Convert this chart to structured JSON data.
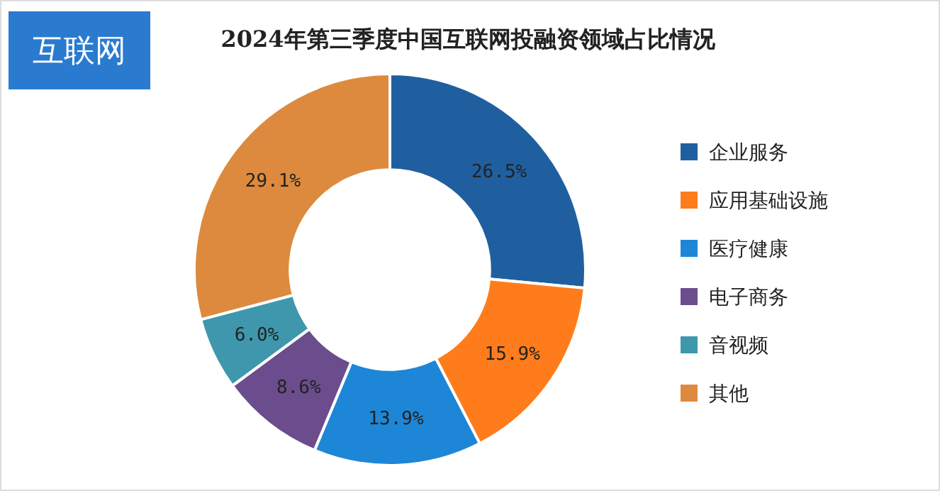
{
  "chart_data": {
    "type": "donut",
    "title": "2024年第三季度中国互联网投融资领域占比情况",
    "categories": [
      "企业服务",
      "应用基础设施",
      "医疗健康",
      "电子商务",
      "音视频",
      "其他"
    ],
    "values": [
      26.5,
      15.9,
      13.9,
      8.6,
      6.0,
      29.1
    ],
    "colors": [
      "#1f5f9f",
      "#ff7c1c",
      "#1e86d6",
      "#6b4c8c",
      "#3f97ad",
      "#dd8a3e"
    ],
    "value_labels": [
      "26.5%",
      "15.9%",
      "13.9%",
      "8.6%",
      "6.0%",
      "29.1%"
    ],
    "legend": "right",
    "annotations": [
      "互联网"
    ]
  }
}
